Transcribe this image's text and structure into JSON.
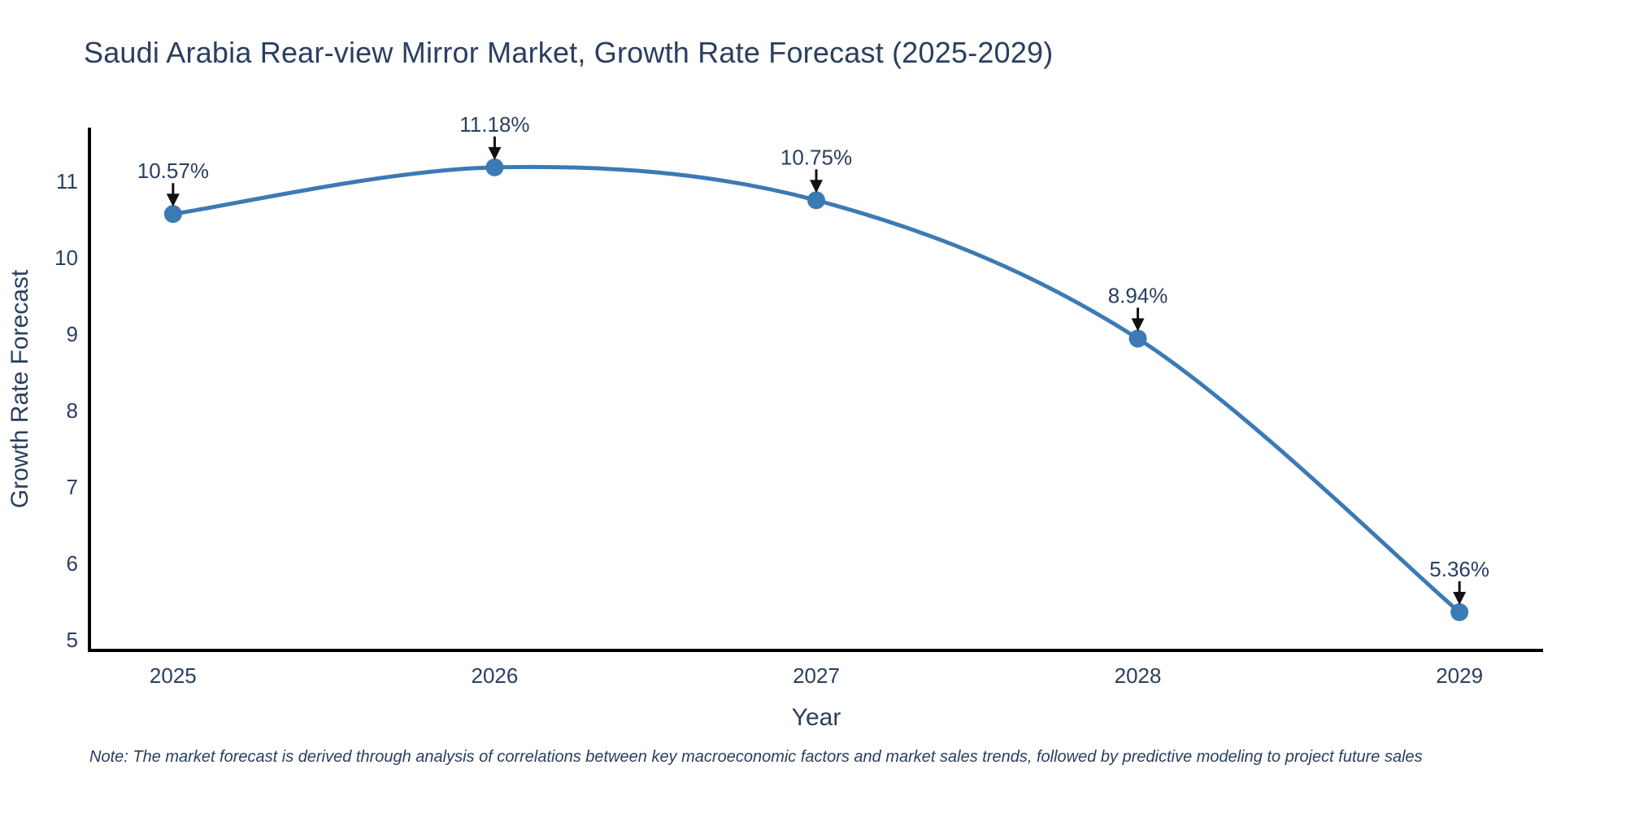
{
  "chart_data": {
    "type": "line",
    "line_shape": "spline",
    "x": [
      2025,
      2026,
      2027,
      2028,
      2029
    ],
    "series": [
      {
        "name": "Growth Rate Forecast",
        "values": [
          10.57,
          11.18,
          10.75,
          8.94,
          5.36
        ]
      }
    ],
    "point_labels": [
      "10.57%",
      "11.18%",
      "10.75%",
      "8.94%",
      "5.36%"
    ],
    "title": "Saudi Arabia Rear-view Mirror Market, Growth Rate Forecast (2025-2029)",
    "xlabel": "Year",
    "ylabel": "Growth Rate Forecast",
    "xticks": [
      "2025",
      "2026",
      "2027",
      "2028",
      "2029"
    ],
    "yticks": [
      5,
      6,
      7,
      8,
      9,
      10,
      11
    ],
    "xlim": [
      2024.74,
      2029.26
    ],
    "ylim": [
      4.86,
      11.7
    ],
    "grid": false,
    "legend": "none",
    "colors": {
      "line": "#3c7ab4",
      "marker": "#3c7ab4",
      "axis_line": "#000000",
      "text": "#2a3f5f",
      "arrow": "#111111",
      "background": "#ffffff"
    }
  },
  "note": "Note: The market forecast is derived through analysis of correlations between key macroeconomic factors and market sales trends, followed by predictive modeling to project future sales"
}
